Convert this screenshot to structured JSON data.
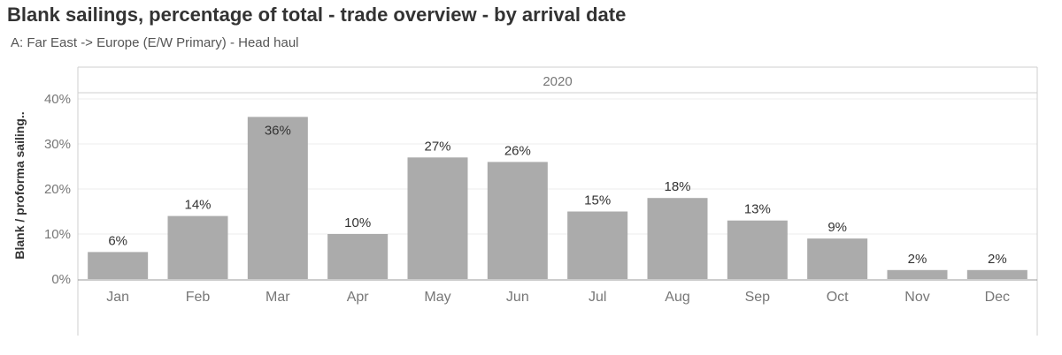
{
  "title": "Blank sailings, percentage of total - trade overview - by arrival date",
  "subtitle": "A: Far East -> Europe (E/W Primary) - Head haul",
  "chart_data": {
    "type": "bar",
    "column_header": "2020",
    "categories": [
      "Jan",
      "Feb",
      "Mar",
      "Apr",
      "May",
      "Jun",
      "Jul",
      "Aug",
      "Sep",
      "Oct",
      "Nov",
      "Dec"
    ],
    "values": [
      6,
      14,
      36,
      10,
      27,
      26,
      15,
      18,
      13,
      9,
      2,
      2
    ],
    "value_labels": [
      "6%",
      "14%",
      "36%",
      "10%",
      "27%",
      "26%",
      "15%",
      "18%",
      "13%",
      "9%",
      "2%",
      "2%"
    ],
    "ylabel": "Blank / proforma sailing..",
    "ylim": [
      0,
      40
    ],
    "yticks": [
      0,
      10,
      20,
      30,
      40
    ],
    "ytick_labels": [
      "0%",
      "10%",
      "20%",
      "30%",
      "40%"
    ],
    "grid": true,
    "bar_color": "#ababab"
  }
}
